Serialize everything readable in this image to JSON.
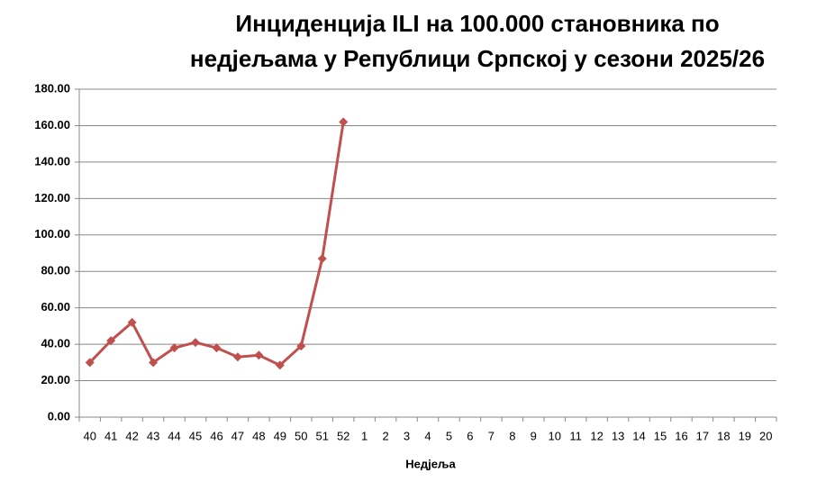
{
  "chart_data": {
    "type": "line",
    "title": [
      "Инциденција ILI на 100.000 становника по",
      "недјељама у Републици Српској у сезони 2025/26"
    ],
    "x_label": "Недјеља",
    "categories": [
      "40",
      "41",
      "42",
      "43",
      "44",
      "45",
      "46",
      "47",
      "48",
      "49",
      "50",
      "51",
      "52",
      "1",
      "2",
      "3",
      "4",
      "5",
      "6",
      "7",
      "8",
      "9",
      "10",
      "11",
      "12",
      "13",
      "14",
      "15",
      "16",
      "17",
      "18",
      "19",
      "20"
    ],
    "series": [
      {
        "color": "#c0504d",
        "values": [
          30,
          42,
          52,
          30,
          38,
          41,
          38,
          33,
          34,
          28.5,
          39,
          87,
          162,
          null,
          null,
          null,
          null,
          null,
          null,
          null,
          null,
          null,
          null,
          null,
          null,
          null,
          null,
          null,
          null,
          null,
          null,
          null,
          null
        ]
      }
    ],
    "ylim": [
      0,
      180
    ],
    "yticks": [
      {
        "value": 0,
        "label": "0.00"
      },
      {
        "value": 20,
        "label": "20.00"
      },
      {
        "value": 40,
        "label": "40.00"
      },
      {
        "value": 60,
        "label": "60.00"
      },
      {
        "value": 80,
        "label": "80.00"
      },
      {
        "value": 100,
        "label": "100.00"
      },
      {
        "value": 120,
        "label": "120.00"
      },
      {
        "value": 140,
        "label": "140.00"
      },
      {
        "value": 160,
        "label": "160.00"
      },
      {
        "value": 180,
        "label": "180.00"
      }
    ],
    "grid": true
  }
}
